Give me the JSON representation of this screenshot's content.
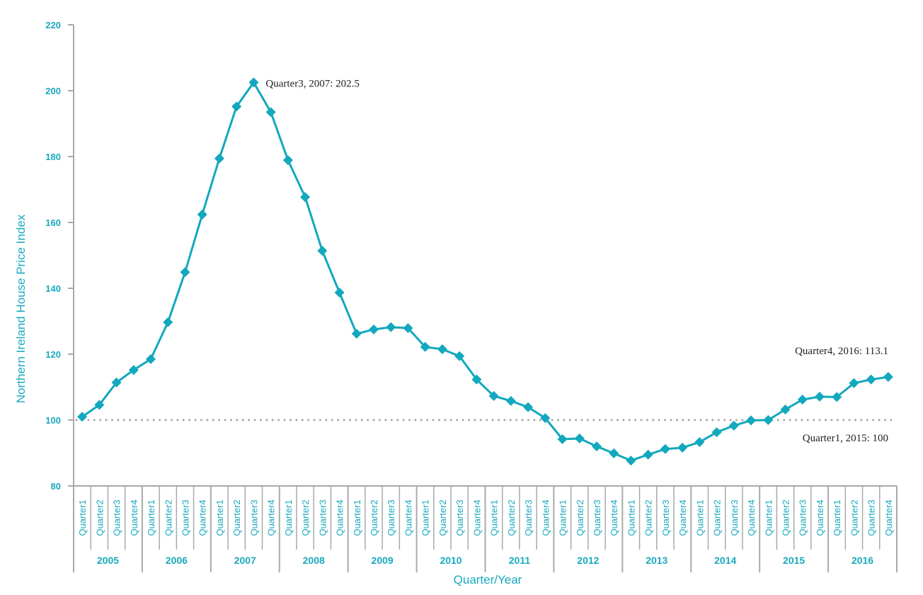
{
  "chart_data": {
    "type": "line",
    "title": "",
    "xlabel": "Quarter/Year",
    "ylabel": "Northern Ireland House Price Index",
    "ylim": [
      80,
      220
    ],
    "yticks": [
      80,
      100,
      120,
      140,
      160,
      180,
      200,
      220
    ],
    "grid": false,
    "years": [
      "2005",
      "2006",
      "2007",
      "2008",
      "2009",
      "2010",
      "2011",
      "2012",
      "2013",
      "2014",
      "2015",
      "2016"
    ],
    "quarters": [
      "Quarter1",
      "Quarter2",
      "Quarter3",
      "Quarter4"
    ],
    "reference_line": {
      "value": 100,
      "style": "dotted"
    },
    "series": [
      {
        "name": "Northern Ireland House Price Index",
        "values": [
          101.0,
          104.6,
          111.4,
          115.2,
          118.5,
          129.7,
          144.9,
          162.4,
          179.4,
          195.2,
          202.5,
          193.5,
          178.9,
          167.7,
          151.4,
          138.7,
          126.2,
          127.5,
          128.2,
          127.9,
          122.2,
          121.5,
          119.4,
          112.3,
          107.3,
          105.8,
          103.9,
          100.6,
          94.2,
          94.4,
          92.0,
          89.9,
          87.7,
          89.5,
          91.2,
          91.6,
          93.3,
          96.3,
          98.3,
          99.9,
          100.0,
          103.2,
          106.2,
          107.1,
          107.0,
          111.2,
          112.3,
          113.1
        ]
      }
    ],
    "annotations": [
      {
        "index": 10,
        "text": "Quarter3, 2007: 202.5"
      },
      {
        "index": 47,
        "text": "Quarter4, 2016: 113.1"
      },
      {
        "index": 40,
        "text": "Quarter1, 2015: 100"
      }
    ]
  },
  "colors": {
    "series": "#12a8bd",
    "axis": "#a7a9ac",
    "labels": "#1aa9bf",
    "reference": "#a7a9ac",
    "annotation": "#222222"
  }
}
